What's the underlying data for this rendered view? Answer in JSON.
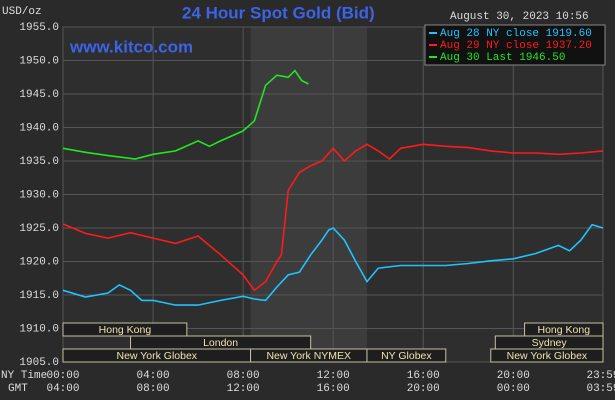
{
  "chart_data": {
    "type": "line",
    "title": "24 Hour Spot Gold (Bid)",
    "timestamp": "August 30, 2023 10:56",
    "y_label": "USD/oz",
    "watermark": "www.kitco.com",
    "x_row_labels": [
      "NY Time",
      "GMT"
    ],
    "xlim": [
      0,
      23.983
    ],
    "xticks": [
      {
        "value": 0,
        "label": "00:00"
      },
      {
        "value": 4,
        "label": "04:00"
      },
      {
        "value": 8,
        "label": "08:00"
      },
      {
        "value": 12,
        "label": "12:00"
      },
      {
        "value": 16,
        "label": "16:00"
      },
      {
        "value": 20,
        "label": "20:00"
      },
      {
        "value": 23.983,
        "label": "23:59"
      }
    ],
    "gmt_labels": [
      "04:00",
      "08:00",
      "12:00",
      "16:00",
      "20:00",
      "00:00",
      "03:59"
    ],
    "ylim": [
      1905,
      1955
    ],
    "yticks": [
      {
        "value": 1905,
        "label": "1905.0"
      },
      {
        "value": 1910,
        "label": "1910.0"
      },
      {
        "value": 1915,
        "label": "1915.0"
      },
      {
        "value": 1920,
        "label": "1920.0"
      },
      {
        "value": 1925,
        "label": "1925.0"
      },
      {
        "value": 1930,
        "label": "1930.0"
      },
      {
        "value": 1935,
        "label": "1935.0"
      },
      {
        "value": 1940,
        "label": "1940.0"
      },
      {
        "value": 1945,
        "label": "1945.0"
      },
      {
        "value": 1950,
        "label": "1950.0"
      },
      {
        "value": 1955,
        "label": "1955.0"
      }
    ],
    "grid": true,
    "highlight": [
      8.33,
      13.5
    ],
    "sessions": [
      {
        "label": "Hong Kong",
        "row": 0,
        "start": 0,
        "end": 5.5
      },
      {
        "label": "Hong Kong",
        "row": 0,
        "end": 23.983,
        "start": 20.5
      },
      {
        "label": "London",
        "row": 1,
        "start": 3,
        "end": 11
      },
      {
        "label": "Sydney",
        "row": 1,
        "start": 19.2,
        "end": 23.983
      },
      {
        "label": "New York Globex",
        "row": 2,
        "start": 0,
        "end": 8.33
      },
      {
        "label": "New York NYMEX",
        "row": 2,
        "start": 8.33,
        "end": 13.5
      },
      {
        "label": "NY Globex",
        "row": 2,
        "start": 13.5,
        "end": 17
      },
      {
        "label": "New York Globex",
        "row": 2,
        "start": 19,
        "end": 23.983
      }
    ],
    "series": [
      {
        "name": "Aug 28 NY close 1919.60",
        "color": "#1fc3ff",
        "x": [
          0,
          1,
          2,
          2.5,
          3,
          3.5,
          4,
          5,
          6,
          7,
          8,
          8.5,
          9,
          9.5,
          10,
          10.5,
          11,
          11.5,
          11.8,
          12,
          12.5,
          13,
          13.5,
          14,
          15,
          16,
          17,
          18,
          19,
          20,
          21,
          22,
          22.5,
          23,
          23.5,
          23.983
        ],
        "values": [
          1915.7,
          1914.7,
          1915.3,
          1916.5,
          1915.7,
          1914.2,
          1914.2,
          1913.5,
          1913.5,
          1914.2,
          1914.8,
          1914.4,
          1914.2,
          1916.2,
          1918,
          1918.4,
          1921,
          1923.2,
          1924.7,
          1925,
          1923.2,
          1920,
          1917,
          1919,
          1919.4,
          1919.4,
          1919.4,
          1919.7,
          1920.1,
          1920.4,
          1921.2,
          1922.4,
          1921.6,
          1923.2,
          1925.5,
          1925
        ]
      },
      {
        "name": "Aug 29 NY close 1937.20",
        "color": "#ff1a1a",
        "x": [
          0,
          1,
          2,
          3,
          4,
          5,
          6,
          7,
          8,
          8.5,
          9,
          9.5,
          9.7,
          10,
          10.5,
          11,
          11.5,
          12,
          12.5,
          13,
          13.5,
          14,
          14.5,
          15,
          16,
          17,
          18,
          19,
          20,
          21,
          22,
          23,
          23.983
        ],
        "values": [
          1925.6,
          1924.2,
          1923.5,
          1924.3,
          1923.5,
          1922.7,
          1923.8,
          1921,
          1918,
          1915.7,
          1917,
          1920,
          1921,
          1930.6,
          1933.3,
          1934.3,
          1935,
          1936.9,
          1935,
          1936.5,
          1937.5,
          1936.5,
          1935.3,
          1936.9,
          1937.5,
          1937.2,
          1937,
          1936.5,
          1936.2,
          1936.2,
          1936,
          1936.2,
          1936.5
        ]
      },
      {
        "name": "Aug 30 Last 1946.50",
        "color": "#22e622",
        "x": [
          0,
          1,
          2,
          3.2,
          4,
          5,
          6,
          6.5,
          7,
          8,
          8.5,
          9,
          9.5,
          10,
          10.3,
          10.6,
          10.9
        ],
        "values": [
          1936.9,
          1936.3,
          1935.8,
          1935.3,
          1936,
          1936.5,
          1938,
          1937.2,
          1938,
          1939.5,
          1941,
          1946.3,
          1947.8,
          1947.5,
          1948.5,
          1947,
          1946.5
        ]
      }
    ]
  }
}
